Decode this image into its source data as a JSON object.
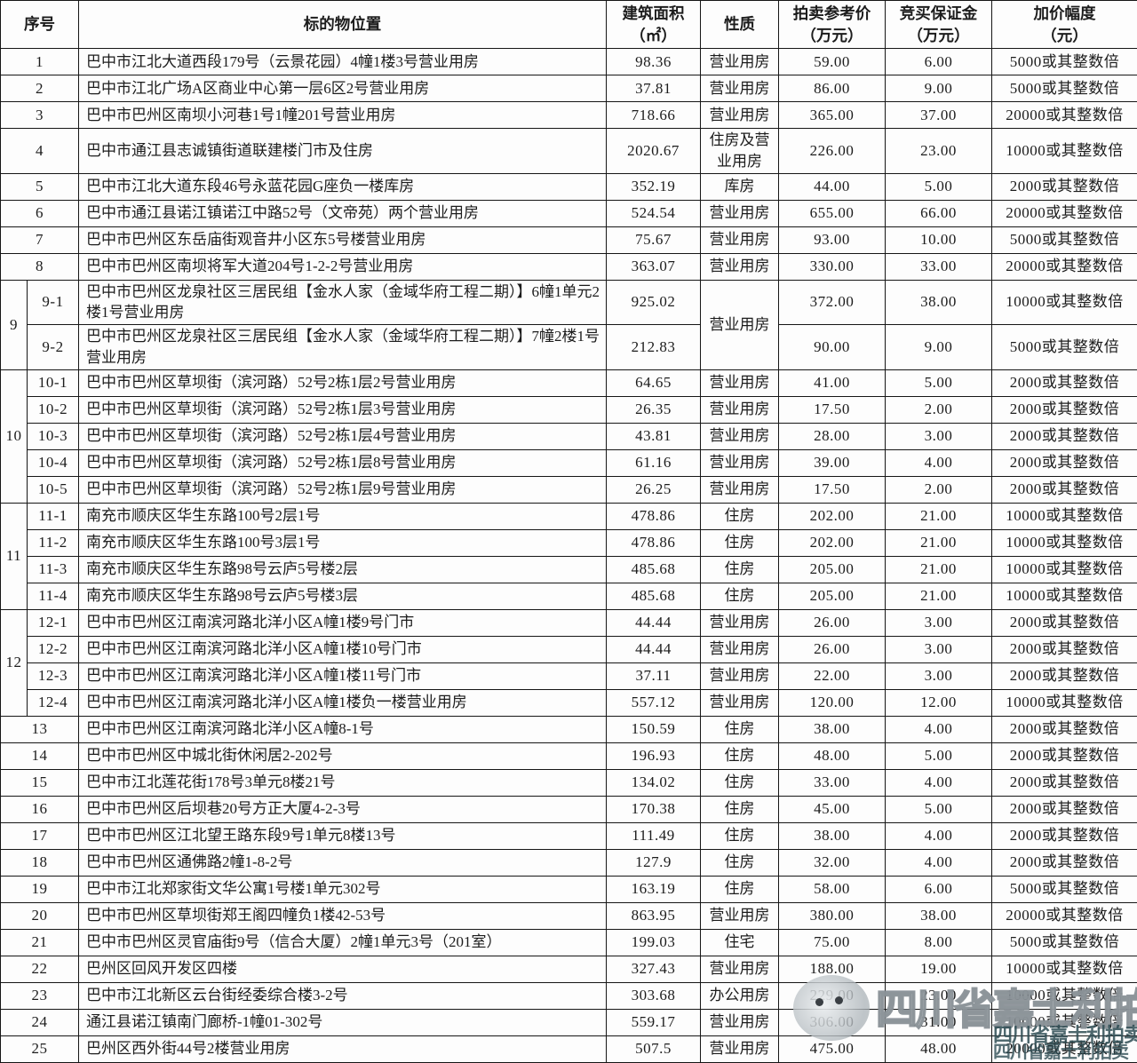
{
  "table": {
    "headers": [
      {
        "label": "序号",
        "sub": ""
      },
      {
        "label": "标的物位置",
        "sub": ""
      },
      {
        "label": "建筑面积",
        "sub": "（㎡）"
      },
      {
        "label": "性质",
        "sub": ""
      },
      {
        "label": "拍卖参考价",
        "sub": "（万元）"
      },
      {
        "label": "竞买保证金",
        "sub": "（万元）"
      },
      {
        "label": "加价幅度",
        "sub": "（元）"
      }
    ],
    "rows": [
      {
        "serial": "1",
        "solo": true,
        "location": "巴中市江北大道西段179号（云景花园）4幢1楼3号营业用房",
        "area": "98.36",
        "nature": "营业用房",
        "price": "59.00",
        "deposit": "6.00",
        "increment": "5000或其整数倍"
      },
      {
        "serial": "2",
        "solo": true,
        "location": "巴中市江北广场A区商业中心第一层6区2号营业用房",
        "area": "37.81",
        "nature": "营业用房",
        "price": "86.00",
        "deposit": "9.00",
        "increment": "5000或其整数倍"
      },
      {
        "serial": "3",
        "solo": true,
        "location": "巴中市巴州区南坝小河巷1号1幢201号营业用房",
        "area": "718.66",
        "nature": "营业用房",
        "price": "365.00",
        "deposit": "37.00",
        "increment": "20000或其整数倍"
      },
      {
        "serial": "4",
        "solo": true,
        "h": "h48",
        "location": "巴中市通江县志诚镇街道联建楼门市及住房",
        "area": "2020.67",
        "nature": "住房及营业用房",
        "price": "226.00",
        "deposit": "23.00",
        "increment": "10000或其整数倍"
      },
      {
        "serial": "5",
        "solo": true,
        "location": "巴中市江北大道东段46号永蓝花园G座负一楼库房",
        "area": "352.19",
        "nature": "库房",
        "price": "44.00",
        "deposit": "5.00",
        "increment": "2000或其整数倍"
      },
      {
        "serial": "6",
        "solo": true,
        "location": "巴中市通江县诺江镇诺江中路52号（文帝苑）两个营业用房",
        "area": "524.54",
        "nature": "营业用房",
        "price": "655.00",
        "deposit": "66.00",
        "increment": "20000或其整数倍"
      },
      {
        "serial": "7",
        "solo": true,
        "location": "巴中市巴州区东岳庙街观音井小区东5号楼营业用房",
        "area": "75.67",
        "nature": "营业用房",
        "price": "93.00",
        "deposit": "10.00",
        "increment": "5000或其整数倍"
      },
      {
        "serial": "8",
        "solo": true,
        "location": "巴中市巴州区南坝将军大道204号1-2-2号营业用房",
        "area": "363.07",
        "nature": "营业用房",
        "price": "330.00",
        "deposit": "33.00",
        "increment": "20000或其整数倍"
      },
      {
        "serial": "9-1",
        "groupLabel": "9",
        "groupSpan": 2,
        "h": "h47",
        "location": "巴中市巴州区龙泉社区三居民组【金水人家（金域华府工程二期）】6幢1单元2楼1号营业用房",
        "area": "925.02",
        "nature": "营业用房",
        "natureSpan": 2,
        "price": "372.00",
        "deposit": "38.00",
        "increment": "10000或其整数倍"
      },
      {
        "serial": "9-2",
        "h": "h47",
        "location": "巴中市巴州区龙泉社区三居民组【金水人家（金域华府工程二期）】7幢2楼1号营业用房",
        "area": "212.83",
        "price": "90.00",
        "deposit": "9.00",
        "increment": "5000或其整数倍"
      },
      {
        "serial": "10-1",
        "groupLabel": "10",
        "groupSpan": 5,
        "location": "巴中市巴州区草坝街（滨河路）52号2栋1层2号营业用房",
        "area": "64.65",
        "nature": "营业用房",
        "price": "41.00",
        "deposit": "5.00",
        "increment": "2000或其整数倍"
      },
      {
        "serial": "10-2",
        "location": "巴中市巴州区草坝街（滨河路）52号2栋1层3号营业用房",
        "area": "26.35",
        "nature": "营业用房",
        "price": "17.50",
        "deposit": "2.00",
        "increment": "2000或其整数倍"
      },
      {
        "serial": "10-3",
        "location": "巴中市巴州区草坝街（滨河路）52号2栋1层4号营业用房",
        "area": "43.81",
        "nature": "营业用房",
        "price": "28.00",
        "deposit": "3.00",
        "increment": "2000或其整数倍"
      },
      {
        "serial": "10-4",
        "location": "巴中市巴州区草坝街（滨河路）52号2栋1层8号营业用房",
        "area": "61.16",
        "nature": "营业用房",
        "price": "39.00",
        "deposit": "4.00",
        "increment": "2000或其整数倍"
      },
      {
        "serial": "10-5",
        "location": "巴中市巴州区草坝街（滨河路）52号2栋1层9号营业用房",
        "area": "26.25",
        "nature": "营业用房",
        "price": "17.50",
        "deposit": "2.00",
        "increment": "2000或其整数倍"
      },
      {
        "serial": "11-1",
        "groupLabel": "11",
        "groupSpan": 4,
        "location": "南充市顺庆区华生东路100号2层1号",
        "area": "478.86",
        "nature": "住房",
        "price": "202.00",
        "deposit": "21.00",
        "increment": "10000或其整数倍"
      },
      {
        "serial": "11-2",
        "location": "南充市顺庆区华生东路100号3层1号",
        "area": "478.86",
        "nature": "住房",
        "price": "202.00",
        "deposit": "21.00",
        "increment": "10000或其整数倍"
      },
      {
        "serial": "11-3",
        "location": "南充市顺庆区华生东路98号云庐5号楼2层",
        "area": "485.68",
        "nature": "住房",
        "price": "205.00",
        "deposit": "21.00",
        "increment": "10000或其整数倍"
      },
      {
        "serial": "11-4",
        "location": "南充市顺庆区华生东路98号云庐5号楼3层",
        "area": "485.68",
        "nature": "住房",
        "price": "205.00",
        "deposit": "21.00",
        "increment": "10000或其整数倍"
      },
      {
        "serial": "12-1",
        "groupLabel": "12",
        "groupSpan": 4,
        "location": "巴中市巴州区江南滨河路北洋小区A幢1楼9号门市",
        "area": "44.44",
        "nature": "营业用房",
        "price": "26.00",
        "deposit": "3.00",
        "increment": "2000或其整数倍"
      },
      {
        "serial": "12-2",
        "location": "巴中市巴州区江南滨河路北洋小区A幢1楼10号门市",
        "area": "44.44",
        "nature": "营业用房",
        "price": "26.00",
        "deposit": "3.00",
        "increment": "2000或其整数倍"
      },
      {
        "serial": "12-3",
        "location": "巴中市巴州区江南滨河路北洋小区A幢1楼11号门市",
        "area": "37.11",
        "nature": "营业用房",
        "price": "22.00",
        "deposit": "3.00",
        "increment": "2000或其整数倍"
      },
      {
        "serial": "12-4",
        "location": "巴中市巴州区江南滨河路北洋小区A幢1楼负一楼营业用房",
        "area": "557.12",
        "nature": "营业用房",
        "price": "120.00",
        "deposit": "12.00",
        "increment": "10000或其整数倍"
      },
      {
        "serial": "13",
        "solo": true,
        "location": "巴中市巴州区江南滨河路北洋小区A幢8-1号",
        "area": "150.59",
        "nature": "住房",
        "price": "38.00",
        "deposit": "4.00",
        "increment": "2000或其整数倍"
      },
      {
        "serial": "14",
        "solo": true,
        "location": "巴中市巴州区中城北街休闲居2-202号",
        "area": "196.93",
        "nature": "住房",
        "price": "48.00",
        "deposit": "5.00",
        "increment": "2000或其整数倍"
      },
      {
        "serial": "15",
        "solo": true,
        "location": "巴中市江北莲花街178号3单元8楼21号",
        "area": "134.02",
        "nature": "住房",
        "price": "33.00",
        "deposit": "4.00",
        "increment": "2000或其整数倍"
      },
      {
        "serial": "16",
        "solo": true,
        "location": "巴中市巴州区后坝巷20号方正大厦4-2-3号",
        "area": "170.38",
        "nature": "住房",
        "price": "45.00",
        "deposit": "5.00",
        "increment": "2000或其整数倍"
      },
      {
        "serial": "17",
        "solo": true,
        "location": "巴中市巴州区江北望王路东段9号1单元8楼13号",
        "area": "111.49",
        "nature": "住房",
        "price": "38.00",
        "deposit": "4.00",
        "increment": "2000或其整数倍"
      },
      {
        "serial": "18",
        "solo": true,
        "location": "巴中市巴州区通佛路2幢1-8-2号",
        "area": "127.9",
        "nature": "住房",
        "price": "32.00",
        "deposit": "4.00",
        "increment": "2000或其整数倍"
      },
      {
        "serial": "19",
        "solo": true,
        "location": "巴中市江北郑家街文华公寓1号楼1单元302号",
        "area": "163.19",
        "nature": "住房",
        "price": "58.00",
        "deposit": "6.00",
        "increment": "5000或其整数倍"
      },
      {
        "serial": "20",
        "solo": true,
        "location": "巴中市巴州区草坝街郑王阁四幢负1楼42-53号",
        "area": "863.95",
        "nature": "营业用房",
        "price": "380.00",
        "deposit": "38.00",
        "increment": "20000或其整数倍"
      },
      {
        "serial": "21",
        "solo": true,
        "location": "巴中市巴州区灵官庙街9号（信合大厦）2幢1单元3号（201室）",
        "area": "199.03",
        "nature": "住宅",
        "price": "75.00",
        "deposit": "8.00",
        "increment": "5000或其整数倍"
      },
      {
        "serial": "22",
        "solo": true,
        "location": "巴州区回风开发区四楼",
        "area": "327.43",
        "nature": "营业用房",
        "price": "188.00",
        "deposit": "19.00",
        "increment": "10000或其整数倍"
      },
      {
        "serial": "23",
        "solo": true,
        "location": "巴中市江北新区云台街经委综合楼3-2号",
        "area": "303.68",
        "nature": "办公用房",
        "price": "229.00",
        "deposit": "23.00",
        "increment": "10000或其整数倍"
      },
      {
        "serial": "24",
        "solo": true,
        "location": "通江县诺江镇南门廊桥-1幢01-302号",
        "area": "559.17",
        "nature": "营业用房",
        "price": "306.00",
        "deposit": "31.00",
        "increment": "10000或其整数倍"
      },
      {
        "serial": "25",
        "solo": true,
        "location": "巴州区西外街44号2楼营业用房",
        "area": "507.5",
        "nature": "营业用房",
        "price": "475.00",
        "deposit": "48.00",
        "increment": "20000或其整数倍"
      }
    ]
  },
  "watermark": {
    "text": "四川省嘉士利拍卖",
    "text_color": "#808a8e",
    "corner_color": "#2d4b52"
  }
}
